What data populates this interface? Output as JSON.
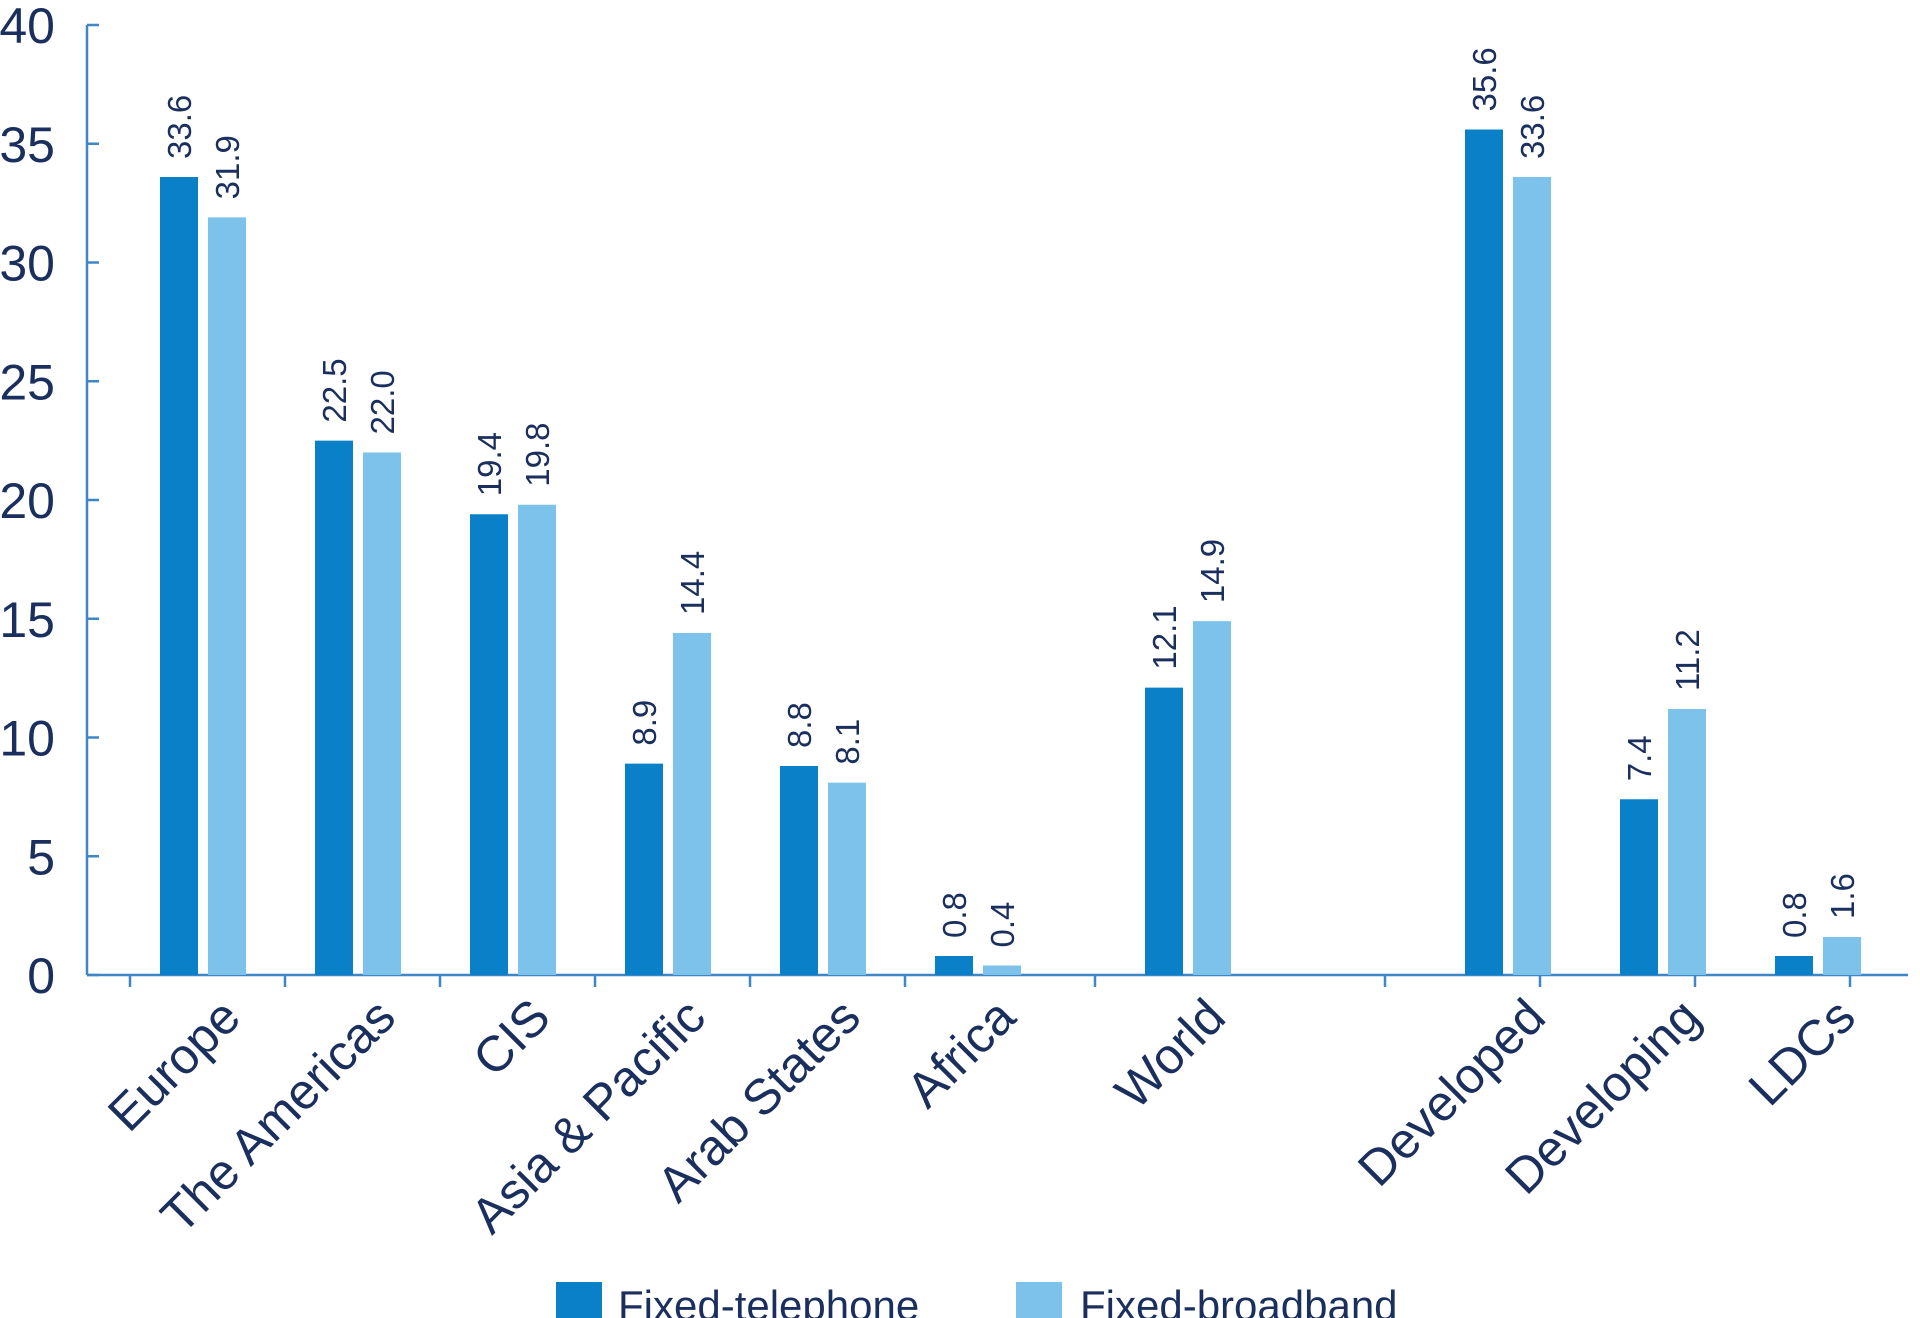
{
  "colors": {
    "axis": "#3f86c6",
    "text": "#1a2f5e",
    "series": [
      "#0a80c8",
      "#7dc2ea"
    ]
  },
  "chart_data": {
    "type": "bar",
    "categories": [
      "Europe",
      "The Americas",
      "CIS",
      "Asia & Pacific",
      "Arab States",
      "Africa",
      "World",
      "Developed",
      "Developing",
      "LDCs"
    ],
    "groups": [
      [
        "Europe",
        "The Americas",
        "CIS",
        "Asia & Pacific",
        "Arab States",
        "Africa"
      ],
      [
        "World"
      ],
      [
        "Developed",
        "Developing",
        "LDCs"
      ]
    ],
    "series": [
      {
        "name": "Fixed-telephone",
        "values": [
          33.6,
          22.5,
          19.4,
          8.9,
          8.8,
          0.8,
          12.1,
          35.6,
          7.4,
          0.8
        ]
      },
      {
        "name": "Fixed-broadband",
        "values": [
          31.9,
          22.0,
          19.8,
          14.4,
          8.1,
          0.4,
          14.9,
          33.6,
          11.2,
          1.6
        ]
      }
    ],
    "data_labels": [
      [
        "33.6",
        "22.5",
        "19.4",
        "8.9",
        "8.8",
        "0.8",
        "12.1",
        "35.6",
        "7.4",
        "0.8"
      ],
      [
        "31.9",
        "22.0",
        "19.8",
        "14.4",
        "8.1",
        "0.4",
        "14.9",
        "33.6",
        "11.2",
        "1.6"
      ]
    ],
    "ylim": [
      0,
      40
    ],
    "yticks": [
      "0",
      "5",
      "10",
      "15",
      "20",
      "25",
      "30",
      "35",
      "40"
    ],
    "grid": false,
    "legend_position": "bottom"
  }
}
